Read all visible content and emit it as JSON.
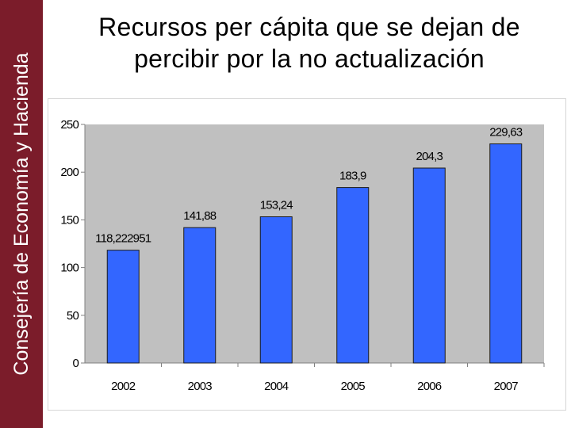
{
  "sidebar": {
    "label": "Consejería de Economía y Hacienda",
    "color": "#7b1c2a"
  },
  "slide": {
    "title_line1": "Recursos per cápita que se dejan de",
    "title_line2": "percibir por la no actualización"
  },
  "chart_data": {
    "type": "bar",
    "title": "",
    "categories": [
      "2002",
      "2003",
      "2004",
      "2005",
      "2006",
      "2007"
    ],
    "values": [
      118.222951,
      141.88,
      153.24,
      183.9,
      204.3,
      229.63
    ],
    "data_labels": [
      "118,222951",
      "141,88",
      "153,24",
      "183,9",
      "204,3",
      "229,63"
    ],
    "ylim": [
      0,
      250
    ],
    "yticks": [
      0,
      50,
      100,
      150,
      200,
      250
    ],
    "xlabel": "",
    "ylabel": "",
    "grid": false,
    "legend": "none",
    "plot_background": "#c0c0c0",
    "bar_color": "#3366ff"
  }
}
